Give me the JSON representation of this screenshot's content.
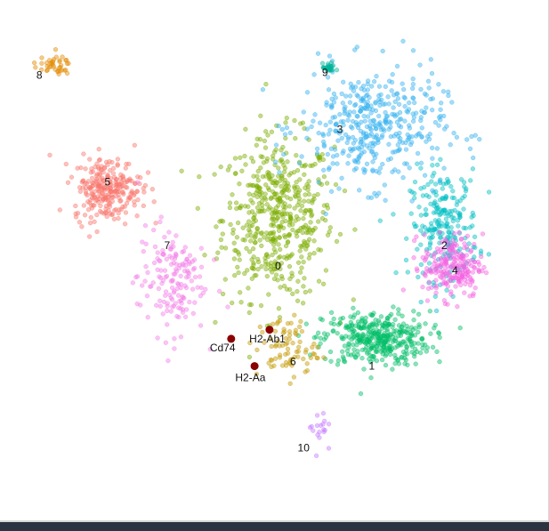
{
  "chart_data": {
    "type": "scatter",
    "title": "",
    "xlabel": "",
    "ylabel": "",
    "grid": false,
    "legend": "none",
    "xlim": [
      -13,
      11
    ],
    "ylim": [
      -10,
      11
    ],
    "clusters": [
      {
        "id": "0",
        "color": "#7CAE00",
        "center": [
          -1.0,
          2.5
        ],
        "spread": [
          2.6,
          3.6
        ],
        "count": 520
      },
      {
        "id": "1",
        "color": "#00BE67",
        "center": [
          3.6,
          -2.8
        ],
        "spread": [
          2.5,
          1.2
        ],
        "count": 380
      },
      {
        "id": "2",
        "color": "#00BFC4",
        "center": [
          6.8,
          2.2
        ],
        "spread": [
          1.6,
          2.4
        ],
        "count": 230
      },
      {
        "id": "3",
        "color": "#35B2F0",
        "center": [
          3.4,
          6.5
        ],
        "spread": [
          3.4,
          2.6
        ],
        "count": 420
      },
      {
        "id": "4",
        "color": "#F564E3",
        "center": [
          7.2,
          0.4
        ],
        "spread": [
          1.4,
          1.4
        ],
        "count": 220
      },
      {
        "id": "5",
        "color": "#F8766D",
        "center": [
          -9.0,
          3.8
        ],
        "spread": [
          1.6,
          1.4
        ],
        "count": 260
      },
      {
        "id": "6",
        "color": "#C49A00",
        "center": [
          -0.6,
          -3.2
        ],
        "spread": [
          1.4,
          1.4
        ],
        "count": 80
      },
      {
        "id": "7",
        "color": "#F37FE8",
        "center": [
          -6.0,
          -0.2
        ],
        "spread": [
          1.6,
          2.4
        ],
        "count": 160
      },
      {
        "id": "8",
        "color": "#E38900",
        "center": [
          -11.6,
          9.2
        ],
        "spread": [
          0.9,
          0.4
        ],
        "count": 40
      },
      {
        "id": "9",
        "color": "#00B39A",
        "center": [
          1.4,
          9.1
        ],
        "spread": [
          0.3,
          0.2
        ],
        "count": 25
      },
      {
        "id": "10",
        "color": "#C77CFF",
        "center": [
          0.9,
          -6.6
        ],
        "spread": [
          0.4,
          1.2
        ],
        "count": 18
      }
    ],
    "cluster_labels": [
      {
        "text": "0",
        "x": -1.0,
        "y": 0.4
      },
      {
        "text": "1",
        "x": 3.4,
        "y": -4.0
      },
      {
        "text": "2",
        "x": 6.8,
        "y": 1.3
      },
      {
        "text": "3",
        "x": 1.9,
        "y": 6.4
      },
      {
        "text": "4",
        "x": 7.3,
        "y": 0.2
      },
      {
        "text": "5",
        "x": -9.0,
        "y": 4.1
      },
      {
        "text": "6",
        "x": -0.3,
        "y": -3.8
      },
      {
        "text": "7",
        "x": -6.2,
        "y": 1.3
      },
      {
        "text": "8",
        "x": -12.2,
        "y": 8.8
      },
      {
        "text": "9",
        "x": 1.2,
        "y": 8.9
      },
      {
        "text": "10",
        "x": 0.2,
        "y": -7.6
      }
    ],
    "highlighted_genes": [
      {
        "gene": "Cd74",
        "x": -3.2,
        "y": -2.8,
        "label_x": -3.6,
        "label_y": -3.2,
        "color": "#8B0000"
      },
      {
        "gene": "H2-Ab1",
        "x": -1.4,
        "y": -2.4,
        "label_x": -1.5,
        "label_y": -2.8,
        "color": "#8B0000"
      },
      {
        "gene": "H2-Aa",
        "x": -2.1,
        "y": -4.0,
        "label_x": -2.3,
        "label_y": -4.5,
        "color": "#8B0000"
      }
    ]
  }
}
